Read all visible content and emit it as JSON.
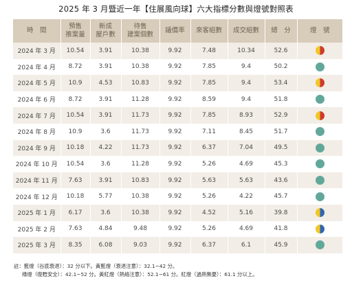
{
  "title": "2025 年 3 月暨近一年【住展風向球】六大指標分數與燈號對照表",
  "headers": [
    [
      "時　間"
    ],
    [
      "預售",
      "推案量"
    ],
    [
      "新成",
      "屋戶數"
    ],
    [
      "待售",
      "建案個數"
    ],
    [
      "議價率"
    ],
    [
      "來客組數"
    ],
    [
      "成交組數"
    ],
    [
      "總　分"
    ],
    [
      "燈　號"
    ]
  ],
  "colors": {
    "header_bg": "#d8ccba",
    "row_alt": "#f2ede6",
    "green": "#62a89a",
    "yellow": "#f2c52a",
    "red": "#cf3b2a",
    "blue": "#2f66ad"
  },
  "rows": [
    {
      "time": "2024 年 3 月",
      "presale": "10.54",
      "newhomes": "3.91",
      "unsold": "10.38",
      "bargain": "9.92",
      "visitors": "7.48",
      "deals": "10.34",
      "total": "52.6",
      "signal": "yellow-red"
    },
    {
      "time": "2024 年 4 月",
      "presale": "8.72",
      "newhomes": "3.91",
      "unsold": "10.38",
      "bargain": "9.92",
      "visitors": "7.85",
      "deals": "9.4",
      "total": "50.2",
      "signal": "green"
    },
    {
      "time": "2024 年 5 月",
      "presale": "10.9",
      "newhomes": "4.53",
      "unsold": "10.83",
      "bargain": "9.92",
      "visitors": "7.85",
      "deals": "9.4",
      "total": "53.4",
      "signal": "yellow-red"
    },
    {
      "time": "2024 年 6 月",
      "presale": "8.72",
      "newhomes": "3.91",
      "unsold": "11.28",
      "bargain": "9.92",
      "visitors": "8.59",
      "deals": "9.4",
      "total": "51.8",
      "signal": "green"
    },
    {
      "time": "2024 年 7 月",
      "presale": "10.54",
      "newhomes": "3.91",
      "unsold": "11.73",
      "bargain": "9.92",
      "visitors": "7.85",
      "deals": "8.93",
      "total": "52.9",
      "signal": "yellow-red"
    },
    {
      "time": "2024 年 8 月",
      "presale": "10.9",
      "newhomes": "3.6",
      "unsold": "11.73",
      "bargain": "9.92",
      "visitors": "7.11",
      "deals": "8.45",
      "total": "51.7",
      "signal": "green"
    },
    {
      "time": "2024 年 9 月",
      "presale": "10.18",
      "newhomes": "4.22",
      "unsold": "11.73",
      "bargain": "9.92",
      "visitors": "6.37",
      "deals": "7.04",
      "total": "49.5",
      "signal": "green"
    },
    {
      "time": "2024 年 10 月",
      "presale": "10.54",
      "newhomes": "3.6",
      "unsold": "11.28",
      "bargain": "9.92",
      "visitors": "5.26",
      "deals": "4.69",
      "total": "45.3",
      "signal": "green"
    },
    {
      "time": "2024 年 11 月",
      "presale": "7.63",
      "newhomes": "3.91",
      "unsold": "10.83",
      "bargain": "9.92",
      "visitors": "5.63",
      "deals": "5.63",
      "total": "43.6",
      "signal": "green"
    },
    {
      "time": "2024 年 12 月",
      "presale": "10.18",
      "newhomes": "5.77",
      "unsold": "10.38",
      "bargain": "9.92",
      "visitors": "5.26",
      "deals": "4.22",
      "total": "45.7",
      "signal": "green"
    },
    {
      "time": "2025 年 1 月",
      "presale": "6.17",
      "newhomes": "3.6",
      "unsold": "10.38",
      "bargain": "9.92",
      "visitors": "4.52",
      "deals": "5.16",
      "total": "39.8",
      "signal": "yellow-blue"
    },
    {
      "time": "2025 年 2 月",
      "presale": "7.63",
      "newhomes": "4.84",
      "unsold": "9.48",
      "bargain": "9.92",
      "visitors": "5.26",
      "deals": "4.69",
      "total": "41.8",
      "signal": "yellow-blue"
    },
    {
      "time": "2025 年 3 月",
      "presale": "8.35",
      "newhomes": "6.08",
      "unsold": "9.03",
      "bargain": "9.92",
      "visitors": "6.37",
      "deals": "6.1",
      "total": "45.9",
      "signal": "green"
    }
  ],
  "notes": [
    "註：藍燈（谷底衰退）：32 分以下。黃藍燈（衰退注意）：32.1~42 分。",
    "綠燈（復甦安全）：42.1~52 分。黃紅燈（熱絡注意）：52.1~61 分。紅燈（過熱無憂）：61.1 分以上。"
  ]
}
